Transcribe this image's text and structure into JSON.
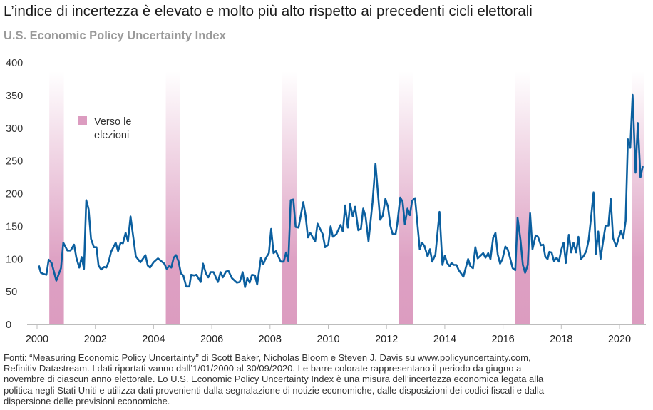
{
  "header": {
    "title": "L’indice di incertezza è elevato e molto più alto rispetto ai precedenti cicli elettorali",
    "subtitle": "U.S. Economic Policy Uncertainty Index"
  },
  "legend": {
    "line1": "Verso le",
    "line2": "elezioni"
  },
  "footnote": [
    "Fonti: “Measuring Economic Policy Uncertainty” di Scott Baker, Nicholas Bloom e Steven J. Davis su www.policyuncertainty.com,",
    "Refinitiv Datastream. I dati riportati vanno dall’1/01/2000 al 30/09/2020. Le barre colorate rappresentano il periodo da giugno a",
    "novembre di ciascun anno elettorale. Lo U.S. Economic Policy Uncertainty Index è una misura dell’incertezza economica legata alla",
    "politica negli Stati Uniti e utilizza dati provenienti dalla segnalazione di notizie economiche, dalle disposizioni dei codici fiscali e dalla",
    "dispersione delle previsioni economiche."
  ],
  "colors": {
    "line": "#0b5f9f",
    "band": "#dc9cc0",
    "axis": "#bdbdbd"
  },
  "chart_data": {
    "type": "line",
    "title": "U.S. Economic Policy Uncertainty Index",
    "xlabel": "",
    "ylabel": "",
    "xlim": [
      2000,
      2020.85
    ],
    "ylim": [
      0,
      400
    ],
    "xticks": [
      "2000",
      "2002",
      "2004",
      "2006",
      "2008",
      "2010",
      "2012",
      "2014",
      "2016",
      "2018",
      "2020"
    ],
    "yticks": [
      "0",
      "50",
      "100",
      "150",
      "200",
      "250",
      "300",
      "350",
      "400"
    ],
    "grid": false,
    "legend": {
      "placement": "top-left",
      "entries": [
        "Verso le elezioni"
      ]
    },
    "bands": [
      [
        2000.42,
        2000.92
      ],
      [
        2004.42,
        2004.92
      ],
      [
        2008.42,
        2008.92
      ],
      [
        2012.42,
        2012.92
      ],
      [
        2016.42,
        2016.92
      ],
      [
        2020.42,
        2020.85
      ]
    ],
    "series": [
      {
        "name": "U.S. Economic Policy Uncertainty Index",
        "points": [
          [
            2000.06,
            90
          ],
          [
            2000.13,
            79
          ],
          [
            2000.24,
            77
          ],
          [
            2000.32,
            76
          ],
          [
            2000.4,
            99
          ],
          [
            2000.5,
            94
          ],
          [
            2000.66,
            67
          ],
          [
            2000.82,
            86
          ],
          [
            2000.9,
            125
          ],
          [
            2001.04,
            113
          ],
          [
            2001.15,
            113
          ],
          [
            2001.27,
            122
          ],
          [
            2001.35,
            102
          ],
          [
            2001.45,
            87
          ],
          [
            2001.53,
            103
          ],
          [
            2001.61,
            85
          ],
          [
            2001.69,
            190
          ],
          [
            2001.77,
            176
          ],
          [
            2001.85,
            131
          ],
          [
            2001.95,
            118
          ],
          [
            2002.04,
            118
          ],
          [
            2002.11,
            90
          ],
          [
            2002.2,
            84
          ],
          [
            2002.3,
            88
          ],
          [
            2002.38,
            87
          ],
          [
            2002.46,
            96
          ],
          [
            2002.54,
            111
          ],
          [
            2002.7,
            125
          ],
          [
            2002.78,
            112
          ],
          [
            2002.87,
            125
          ],
          [
            2002.95,
            124
          ],
          [
            2003.04,
            140
          ],
          [
            2003.12,
            127
          ],
          [
            2003.21,
            165
          ],
          [
            2003.39,
            104
          ],
          [
            2003.55,
            95
          ],
          [
            2003.72,
            106
          ],
          [
            2003.8,
            90
          ],
          [
            2003.88,
            87
          ],
          [
            2004.0,
            95
          ],
          [
            2004.15,
            101
          ],
          [
            2004.37,
            93
          ],
          [
            2004.45,
            85
          ],
          [
            2004.53,
            89
          ],
          [
            2004.61,
            87
          ],
          [
            2004.69,
            102
          ],
          [
            2004.77,
            106
          ],
          [
            2004.86,
            96
          ],
          [
            2004.94,
            78
          ],
          [
            2005.02,
            75
          ],
          [
            2005.12,
            58
          ],
          [
            2005.23,
            58
          ],
          [
            2005.29,
            76
          ],
          [
            2005.39,
            75
          ],
          [
            2005.47,
            76
          ],
          [
            2005.62,
            65
          ],
          [
            2005.7,
            93
          ],
          [
            2005.8,
            78
          ],
          [
            2005.88,
            72
          ],
          [
            2005.96,
            80
          ],
          [
            2006.06,
            80
          ],
          [
            2006.21,
            65
          ],
          [
            2006.3,
            80
          ],
          [
            2006.38,
            72
          ],
          [
            2006.49,
            81
          ],
          [
            2006.57,
            82
          ],
          [
            2006.69,
            71
          ],
          [
            2006.86,
            64
          ],
          [
            2006.96,
            65
          ],
          [
            2007.06,
            80
          ],
          [
            2007.14,
            57
          ],
          [
            2007.22,
            71
          ],
          [
            2007.3,
            64
          ],
          [
            2007.38,
            76
          ],
          [
            2007.48,
            75
          ],
          [
            2007.56,
            61
          ],
          [
            2007.69,
            102
          ],
          [
            2007.77,
            92
          ],
          [
            2007.85,
            101
          ],
          [
            2007.96,
            109
          ],
          [
            2008.04,
            146
          ],
          [
            2008.12,
            109
          ],
          [
            2008.2,
            112
          ],
          [
            2008.37,
            96
          ],
          [
            2008.47,
            96
          ],
          [
            2008.55,
            110
          ],
          [
            2008.63,
            97
          ],
          [
            2008.71,
            190
          ],
          [
            2008.8,
            191
          ],
          [
            2008.88,
            149
          ],
          [
            2008.98,
            148
          ],
          [
            2009.14,
            187
          ],
          [
            2009.22,
            167
          ],
          [
            2009.3,
            133
          ],
          [
            2009.38,
            140
          ],
          [
            2009.55,
            127
          ],
          [
            2009.63,
            154
          ],
          [
            2009.81,
            138
          ],
          [
            2009.89,
            118
          ],
          [
            2010.0,
            122
          ],
          [
            2010.08,
            150
          ],
          [
            2010.16,
            134
          ],
          [
            2010.28,
            138
          ],
          [
            2010.42,
            152
          ],
          [
            2010.5,
            142
          ],
          [
            2010.58,
            182
          ],
          [
            2010.67,
            148
          ],
          [
            2010.75,
            184
          ],
          [
            2010.84,
            165
          ],
          [
            2010.92,
            180
          ],
          [
            2011.03,
            144
          ],
          [
            2011.12,
            146
          ],
          [
            2011.2,
            177
          ],
          [
            2011.28,
            165
          ],
          [
            2011.38,
            127
          ],
          [
            2011.52,
            187
          ],
          [
            2011.62,
            246
          ],
          [
            2011.78,
            160
          ],
          [
            2011.87,
            166
          ],
          [
            2011.96,
            192
          ],
          [
            2012.05,
            180
          ],
          [
            2012.13,
            151
          ],
          [
            2012.21,
            138
          ],
          [
            2012.31,
            138
          ],
          [
            2012.37,
            154
          ],
          [
            2012.47,
            194
          ],
          [
            2012.55,
            188
          ],
          [
            2012.63,
            153
          ],
          [
            2012.72,
            177
          ],
          [
            2012.8,
            167
          ],
          [
            2012.88,
            189
          ],
          [
            2012.98,
            193
          ],
          [
            2013.14,
            115
          ],
          [
            2013.22,
            125
          ],
          [
            2013.3,
            120
          ],
          [
            2013.41,
            104
          ],
          [
            2013.49,
            115
          ],
          [
            2013.57,
            96
          ],
          [
            2013.68,
            107
          ],
          [
            2013.82,
            172
          ],
          [
            2013.92,
            91
          ],
          [
            2014.0,
            105
          ],
          [
            2014.08,
            94
          ],
          [
            2014.17,
            89
          ],
          [
            2014.23,
            94
          ],
          [
            2014.31,
            91
          ],
          [
            2014.4,
            91
          ],
          [
            2014.48,
            83
          ],
          [
            2014.64,
            73
          ],
          [
            2014.8,
            100
          ],
          [
            2014.88,
            89
          ],
          [
            2014.97,
            86
          ],
          [
            2015.05,
            118
          ],
          [
            2015.13,
            101
          ],
          [
            2015.32,
            109
          ],
          [
            2015.4,
            102
          ],
          [
            2015.49,
            109
          ],
          [
            2015.57,
            100
          ],
          [
            2015.66,
            132
          ],
          [
            2015.74,
            140
          ],
          [
            2015.82,
            107
          ],
          [
            2015.9,
            93
          ],
          [
            2015.98,
            100
          ],
          [
            2016.08,
            119
          ],
          [
            2016.16,
            115
          ],
          [
            2016.24,
            102
          ],
          [
            2016.33,
            86
          ],
          [
            2016.42,
            83
          ],
          [
            2016.5,
            163
          ],
          [
            2016.6,
            129
          ],
          [
            2016.68,
            91
          ],
          [
            2016.76,
            79
          ],
          [
            2016.85,
            91
          ],
          [
            2016.93,
            170
          ],
          [
            2017.01,
            115
          ],
          [
            2017.12,
            136
          ],
          [
            2017.2,
            134
          ],
          [
            2017.3,
            121
          ],
          [
            2017.38,
            122
          ],
          [
            2017.45,
            104
          ],
          [
            2017.53,
            100
          ],
          [
            2017.59,
            111
          ],
          [
            2017.67,
            110
          ],
          [
            2017.75,
            97
          ],
          [
            2017.84,
            102
          ],
          [
            2017.92,
            96
          ],
          [
            2018.0,
            114
          ],
          [
            2018.08,
            125
          ],
          [
            2018.16,
            94
          ],
          [
            2018.26,
            137
          ],
          [
            2018.34,
            110
          ],
          [
            2018.42,
            125
          ],
          [
            2018.51,
            110
          ],
          [
            2018.59,
            134
          ],
          [
            2018.67,
            100
          ],
          [
            2018.76,
            104
          ],
          [
            2018.86,
            112
          ],
          [
            2018.94,
            129
          ],
          [
            2019.02,
            162
          ],
          [
            2019.11,
            202
          ],
          [
            2019.19,
            108
          ],
          [
            2019.27,
            142
          ],
          [
            2019.35,
            100
          ],
          [
            2019.44,
            128
          ],
          [
            2019.52,
            151
          ],
          [
            2019.62,
            151
          ],
          [
            2019.7,
            192
          ],
          [
            2019.78,
            132
          ],
          [
            2019.89,
            119
          ],
          [
            2019.97,
            132
          ],
          [
            2020.05,
            143
          ],
          [
            2020.13,
            132
          ],
          [
            2020.21,
            158
          ],
          [
            2020.29,
            283
          ],
          [
            2020.37,
            270
          ],
          [
            2020.45,
            351
          ],
          [
            2020.55,
            232
          ],
          [
            2020.63,
            308
          ],
          [
            2020.72,
            225
          ],
          [
            2020.8,
            242
          ]
        ]
      }
    ]
  }
}
